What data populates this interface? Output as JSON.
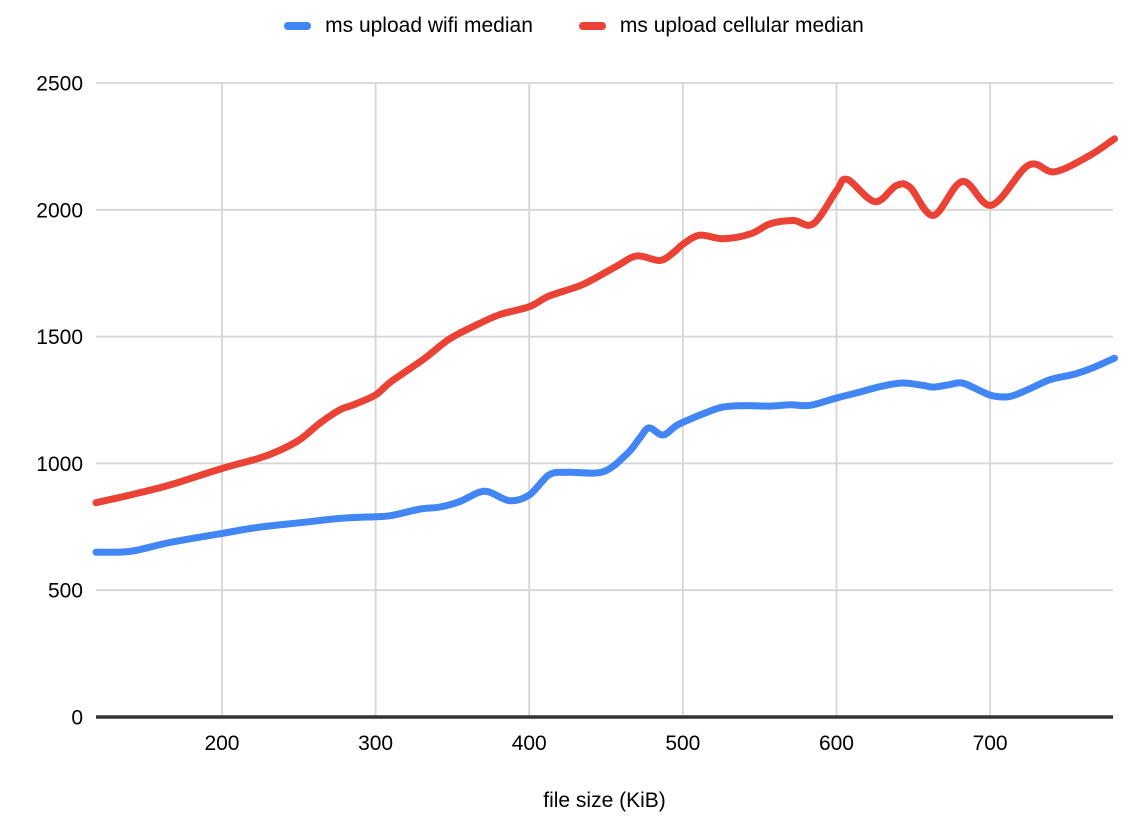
{
  "page": {
    "background": "#ffffff"
  },
  "colors": {
    "grid": "#d5d5d5",
    "axis": "#333333",
    "text": "#000000",
    "wifi_series": "#4285f4",
    "cellular_series": "#ea4335"
  },
  "chart_data": {
    "type": "line",
    "title": "",
    "xlabel": "file size (KiB)",
    "ylabel": "",
    "x_unit": "KiB",
    "y_unit": "ms",
    "xlim": [
      118,
      780
    ],
    "ylim": [
      0,
      2500
    ],
    "x_ticks": [
      200,
      300,
      400,
      500,
      600,
      700
    ],
    "y_ticks": [
      0,
      500,
      1000,
      1500,
      2000,
      2500
    ],
    "grid": true,
    "legend_position": "top",
    "line_style": "smooth",
    "series": [
      {
        "name": "ms upload wifi median",
        "color": "#4285f4",
        "points": [
          [
            118,
            650
          ],
          [
            140,
            653
          ],
          [
            166,
            688
          ],
          [
            200,
            724
          ],
          [
            224,
            748
          ],
          [
            251,
            766
          ],
          [
            277,
            783
          ],
          [
            300,
            790
          ],
          [
            310,
            794
          ],
          [
            329,
            820
          ],
          [
            342,
            828
          ],
          [
            355,
            850
          ],
          [
            371,
            890
          ],
          [
            387,
            853
          ],
          [
            400,
            875
          ],
          [
            413,
            955
          ],
          [
            425,
            965
          ],
          [
            448,
            967
          ],
          [
            464,
            1040
          ],
          [
            472,
            1100
          ],
          [
            478,
            1140
          ],
          [
            487,
            1112
          ],
          [
            496,
            1150
          ],
          [
            505,
            1175
          ],
          [
            515,
            1200
          ],
          [
            526,
            1222
          ],
          [
            540,
            1228
          ],
          [
            557,
            1226
          ],
          [
            570,
            1231
          ],
          [
            583,
            1229
          ],
          [
            600,
            1258
          ],
          [
            613,
            1278
          ],
          [
            630,
            1305
          ],
          [
            643,
            1317
          ],
          [
            656,
            1308
          ],
          [
            663,
            1301
          ],
          [
            673,
            1310
          ],
          [
            682,
            1317
          ],
          [
            694,
            1285
          ],
          [
            702,
            1266
          ],
          [
            713,
            1264
          ],
          [
            725,
            1292
          ],
          [
            739,
            1330
          ],
          [
            755,
            1352
          ],
          [
            766,
            1375
          ],
          [
            781,
            1415
          ]
        ]
      },
      {
        "name": "ms upload cellular median",
        "color": "#ea4335",
        "points": [
          [
            118,
            845
          ],
          [
            140,
            875
          ],
          [
            166,
            915
          ],
          [
            200,
            980
          ],
          [
            224,
            1020
          ],
          [
            237,
            1050
          ],
          [
            251,
            1095
          ],
          [
            264,
            1160
          ],
          [
            277,
            1212
          ],
          [
            286,
            1232
          ],
          [
            300,
            1270
          ],
          [
            310,
            1322
          ],
          [
            331,
            1410
          ],
          [
            348,
            1490
          ],
          [
            366,
            1547
          ],
          [
            381,
            1587
          ],
          [
            400,
            1618
          ],
          [
            413,
            1660
          ],
          [
            435,
            1706
          ],
          [
            457,
            1778
          ],
          [
            470,
            1818
          ],
          [
            485,
            1800
          ],
          [
            494,
            1832
          ],
          [
            500,
            1864
          ],
          [
            511,
            1900
          ],
          [
            526,
            1886
          ],
          [
            544,
            1905
          ],
          [
            557,
            1945
          ],
          [
            572,
            1958
          ],
          [
            585,
            1945
          ],
          [
            600,
            2075
          ],
          [
            607,
            2120
          ],
          [
            625,
            2032
          ],
          [
            639,
            2096
          ],
          [
            648,
            2088
          ],
          [
            663,
            1978
          ],
          [
            682,
            2112
          ],
          [
            701,
            2018
          ],
          [
            725,
            2176
          ],
          [
            742,
            2150
          ],
          [
            765,
            2215
          ],
          [
            781,
            2280
          ]
        ]
      }
    ]
  }
}
